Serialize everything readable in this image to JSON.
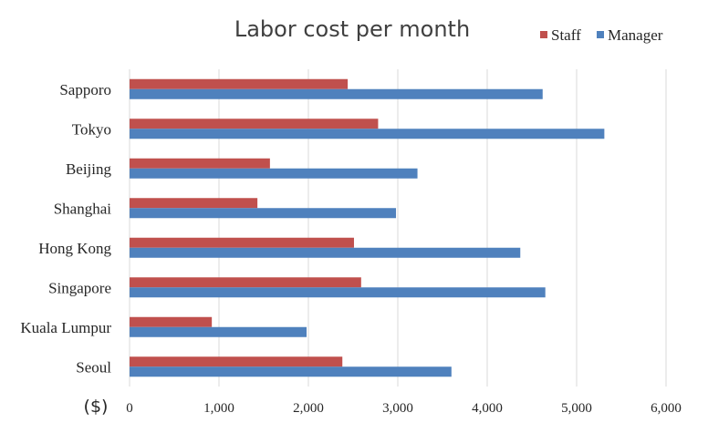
{
  "chart_data": {
    "type": "bar",
    "orientation": "horizontal",
    "title": "Labor cost per month",
    "xlabel": "($)",
    "ylabel": "",
    "categories": [
      "Sapporo",
      "Tokyo",
      "Beijing",
      "Shanghai",
      "Hong Kong",
      "Singapore",
      "Kuala Lumpur",
      "Seoul"
    ],
    "series": [
      {
        "name": "Staff",
        "color": "#c0504d",
        "values": [
          2440,
          2780,
          1570,
          1430,
          2510,
          2590,
          920,
          2380
        ]
      },
      {
        "name": "Manager",
        "color": "#4f81bd",
        "values": [
          4620,
          5310,
          3220,
          2980,
          4370,
          4650,
          1980,
          3600
        ]
      }
    ],
    "xlim": [
      0,
      6000
    ],
    "xticks": [
      0,
      1000,
      2000,
      3000,
      4000,
      5000,
      6000
    ],
    "xtick_labels": [
      "0",
      "1,000",
      "2,000",
      "3,000",
      "4,000",
      "5,000",
      "6,000"
    ],
    "grid": true,
    "legend_position": "top-right"
  }
}
